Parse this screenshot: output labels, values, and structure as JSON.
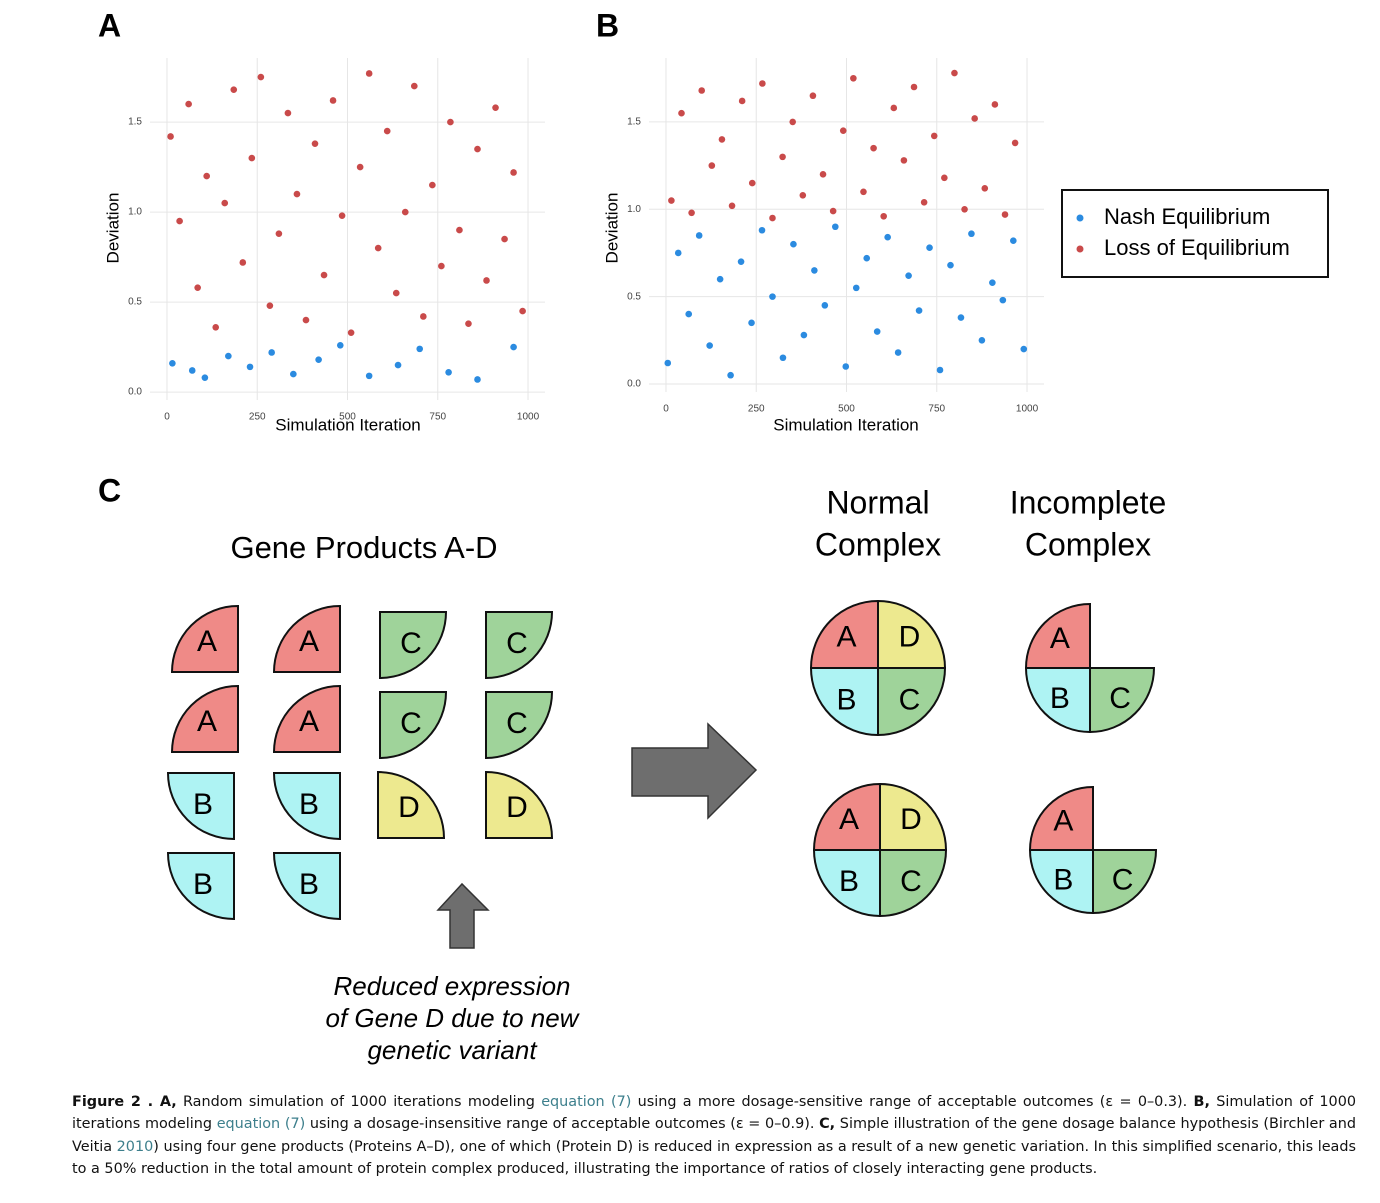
{
  "chart_data": [
    {
      "type": "scatter",
      "label": "A",
      "xlabel": "Simulation Iteration",
      "ylabel": "Deviation",
      "xlim": [
        -47,
        1047
      ],
      "ylim": [
        -0.044,
        1.856
      ],
      "xticks": [
        0,
        250,
        500,
        750,
        1000
      ],
      "yticks": [
        {
          "value": 0,
          "label": "0.0"
        },
        0.5,
        {
          "value": 1,
          "label": "1.0"
        },
        1.5
      ],
      "grid": true,
      "series": [
        {
          "color": "#c94a4a",
          "x": [
            10,
            35,
            60,
            85,
            110,
            135,
            160,
            185,
            210,
            235,
            260,
            285,
            310,
            335,
            360,
            385,
            410,
            435,
            460,
            485,
            510,
            535,
            560,
            585,
            610,
            635,
            660,
            685,
            710,
            735,
            760,
            785,
            810,
            835,
            860,
            885,
            910,
            935,
            960,
            985
          ],
          "values": [
            1.42,
            0.95,
            1.6,
            0.58,
            1.2,
            0.36,
            1.05,
            1.68,
            0.72,
            1.3,
            1.75,
            0.48,
            0.88,
            1.55,
            1.1,
            0.4,
            1.38,
            0.65,
            1.62,
            0.98,
            0.33,
            1.25,
            1.77,
            0.8,
            1.45,
            0.55,
            1.0,
            1.7,
            0.42,
            1.15,
            0.7,
            1.5,
            0.9,
            0.38,
            1.35,
            0.62,
            1.58,
            0.85,
            1.22,
            0.45
          ]
        },
        {
          "color": "#2b8be0",
          "x": [
            15,
            70,
            105,
            170,
            230,
            290,
            350,
            420,
            480,
            560,
            640,
            700,
            780,
            860,
            960
          ],
          "values": [
            0.16,
            0.12,
            0.08,
            0.2,
            0.14,
            0.22,
            0.1,
            0.18,
            0.26,
            0.09,
            0.15,
            0.24,
            0.11,
            0.07,
            0.25
          ]
        }
      ]
    },
    {
      "type": "scatter",
      "label": "B",
      "xlabel": "Simulation Iteration",
      "ylabel": "Deviation",
      "xlim": [
        -47,
        1047
      ],
      "ylim": [
        -0.046,
        1.866
      ],
      "xticks": [
        0,
        250,
        500,
        750,
        1000
      ],
      "yticks": [
        {
          "value": 0,
          "label": "0.0"
        },
        0.5,
        {
          "value": 1,
          "label": "1.0"
        },
        1.5
      ],
      "grid": true,
      "legend": "right",
      "series": [
        {
          "name": "Nash Equilibrium",
          "color": "#2b8be0",
          "x": [
            5,
            34,
            63,
            92,
            121,
            150,
            179,
            208,
            237,
            266,
            295,
            324,
            353,
            382,
            411,
            440,
            469,
            498,
            527,
            556,
            585,
            614,
            643,
            672,
            701,
            730,
            759,
            788,
            817,
            846,
            875,
            904,
            933,
            962,
            991
          ],
          "values": [
            0.12,
            0.75,
            0.4,
            0.85,
            0.22,
            0.6,
            0.05,
            0.7,
            0.35,
            0.88,
            0.5,
            0.15,
            0.8,
            0.28,
            0.65,
            0.45,
            0.9,
            0.1,
            0.55,
            0.72,
            0.3,
            0.84,
            0.18,
            0.62,
            0.42,
            0.78,
            0.08,
            0.68,
            0.38,
            0.86,
            0.25,
            0.58,
            0.48,
            0.82,
            0.2
          ]
        },
        {
          "name": "Loss of Equilibrium",
          "color": "#c94a4a",
          "x": [
            15,
            43,
            71,
            99,
            127,
            155,
            183,
            211,
            239,
            267,
            295,
            323,
            351,
            379,
            407,
            435,
            463,
            491,
            519,
            547,
            575,
            603,
            631,
            659,
            687,
            715,
            743,
            771,
            799,
            827,
            855,
            883,
            911,
            939,
            967
          ],
          "values": [
            1.05,
            1.55,
            0.98,
            1.68,
            1.25,
            1.4,
            1.02,
            1.62,
            1.15,
            1.72,
            0.95,
            1.3,
            1.5,
            1.08,
            1.65,
            1.2,
            0.99,
            1.45,
            1.75,
            1.1,
            1.35,
            0.96,
            1.58,
            1.28,
            1.7,
            1.04,
            1.42,
            1.18,
            1.78,
            1.0,
            1.52,
            1.12,
            1.6,
            0.97,
            1.38
          ]
        }
      ]
    }
  ],
  "panel_c": {
    "label": "C",
    "title": "Gene Products A-D",
    "products": [
      "A",
      "B",
      "C",
      "D"
    ],
    "normal_heading": [
      "Normal",
      "Complex"
    ],
    "incomplete_heading": [
      "Incomplete",
      "Complex"
    ],
    "note": [
      "Reduced expression",
      "of Gene D due to new",
      "genetic variant"
    ]
  },
  "caption": [
    {
      "text": "Figure 2 . A,",
      "style": "bold"
    },
    {
      "text": " Random simulation of 1000 iterations modeling ",
      "style": "plain"
    },
    {
      "text": "equation (7)",
      "style": "link"
    },
    {
      "text": " using a more dosage-sensitive range of acceptable outcomes (ε = 0–0.3). ",
      "style": "plain"
    },
    {
      "text": "B,",
      "style": "bold"
    },
    {
      "text": " Simulation of 1000 iterations modeling ",
      "style": "plain"
    },
    {
      "text": "equation (7)",
      "style": "link"
    },
    {
      "text": " using a dosage-insensitive range of acceptable outcomes (ε = 0–0.9). ",
      "style": "plain"
    },
    {
      "text": "C,",
      "style": "bold"
    },
    {
      "text": " Simple illustration of the gene dosage balance hypothesis (Birchler and Veitia ",
      "style": "plain"
    },
    {
      "text": "2010",
      "style": "link"
    },
    {
      "text": ") using four gene products (Proteins A–D), one of which (Protein D) is reduced in expression as a result of a new genetic variation. In this simplified scenario, this leads to a 50% reduction in the total amount of protein complex produced, illustrating the importance of ratios of closely interacting gene products.",
      "style": "plain"
    }
  ]
}
